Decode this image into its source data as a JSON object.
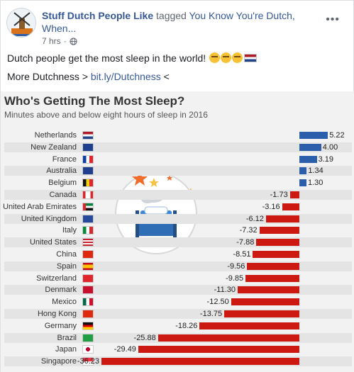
{
  "post": {
    "page_name": "Stuff Dutch People Like",
    "tag_verb": "tagged",
    "tagged_page": "You Know You're Dutch, When...",
    "time": "7 hrs",
    "more_icon": "ellipsis-icon",
    "text_line1": "Dutch people get the most sleep in the world!",
    "text_line2_prefix": "More Dutchness > ",
    "link_text": "bit.ly/Dutchness",
    "text_line2_suffix": " <"
  },
  "chart_data": {
    "type": "bar",
    "title": "Who's Getting The Most Sleep?",
    "subtitle": "Minutes above and below eight hours of sleep in 2016",
    "categories": [
      "Netherlands",
      "New Zealand",
      "France",
      "Australia",
      "Belgium",
      "Canada",
      "United Arab Emirates",
      "United Kingdom",
      "Italy",
      "United States",
      "China",
      "Spain",
      "Switzerland",
      "Denmark",
      "Mexico",
      "Hong Kong",
      "Germany",
      "Brazil",
      "Japan",
      "Singapore"
    ],
    "values": [
      5.22,
      4.0,
      3.19,
      1.34,
      1.3,
      -1.73,
      -3.16,
      -6.12,
      -7.32,
      -7.88,
      -8.51,
      -9.56,
      -9.85,
      -11.3,
      -12.5,
      -13.75,
      -18.26,
      -25.88,
      -29.49,
      -36.23
    ],
    "labels": [
      "5.22",
      "4.00",
      "3.19",
      "1.34",
      "1.30",
      "-1.73",
      "-3.16",
      "-6.12",
      "-7.32",
      "-7.88",
      "-8.51",
      "-9.56",
      "-9.85",
      "-11.30",
      "-12.50",
      "-13.75",
      "-18.26",
      "-25.88",
      "-29.49",
      "-36.23"
    ],
    "colors": {
      "positive": "#2b5fac",
      "negative": "#cc1a12"
    },
    "flags": [
      "nl",
      "nz",
      "fr",
      "au",
      "be",
      "ca",
      "ae",
      "gb",
      "it",
      "us",
      "cn",
      "es",
      "ch",
      "dk",
      "mx",
      "hk",
      "de",
      "br",
      "jp",
      "sg"
    ]
  }
}
